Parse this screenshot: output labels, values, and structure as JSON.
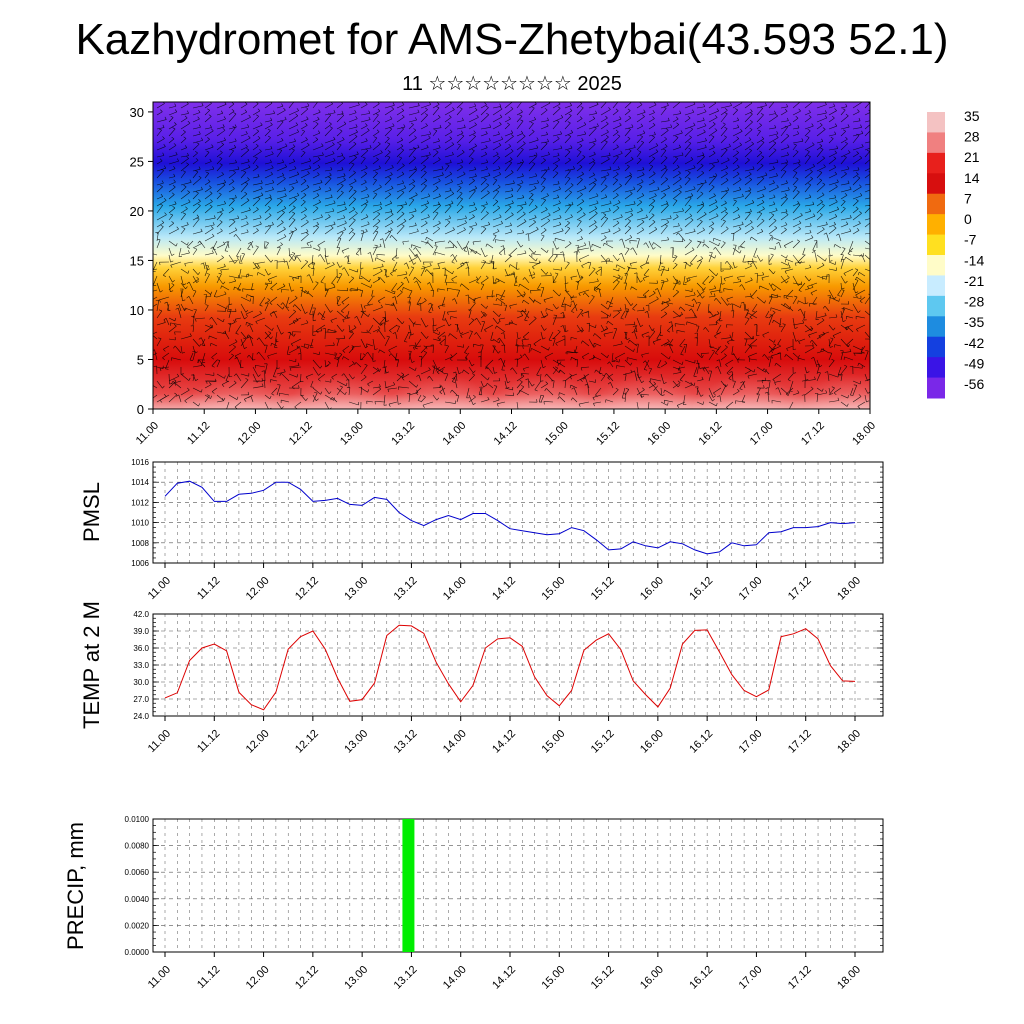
{
  "title": "Kazhydromet for AMS-Zhetybai(43.593 52.1)",
  "subtitle": "11 ☆☆☆☆☆☆☆☆ 2025",
  "time_ticks": [
    "11.00",
    "11.12",
    "12.00",
    "12.12",
    "13.00",
    "13.12",
    "14.00",
    "14.12",
    "15.00",
    "15.12",
    "16.00",
    "16.12",
    "17.00",
    "17.12",
    "18.00"
  ],
  "colorbar": {
    "labels": [
      "35",
      "28",
      "21",
      "14",
      "7",
      "0",
      "-7",
      "-14",
      "-21",
      "-28",
      "-35",
      "-42",
      "-49",
      "-56"
    ],
    "colors": [
      "#f4c2c2",
      "#f08080",
      "#e8201c",
      "#d70f0f",
      "#f06a10",
      "#ffb000",
      "#ffe020",
      "#fffcc8",
      "#c8ecff",
      "#5ec8f0",
      "#1e8ce0",
      "#1440e0",
      "#3a14e6",
      "#7a28e8"
    ]
  },
  "chart_data": [
    {
      "type": "heatmap",
      "name": "temperature-wind-profile",
      "x_ticks": [
        "11.00",
        "11.12",
        "12.00",
        "12.12",
        "13.00",
        "13.12",
        "14.00",
        "14.12",
        "15.00",
        "15.12",
        "16.00",
        "16.12",
        "17.00",
        "17.12",
        "18.00"
      ],
      "y_ticks": [
        "0",
        "5",
        "10",
        "15",
        "20",
        "25",
        "30"
      ],
      "ylim": [
        0,
        31
      ],
      "color_scale": [
        -56,
        35
      ],
      "overlay": "wind barbs"
    },
    {
      "type": "line",
      "ylabel": "PMSL",
      "color": "#0000cc",
      "ylim": [
        1006,
        1016
      ],
      "y_ticks": [
        "1016",
        "1014",
        "1012",
        "1010",
        "1008",
        "1006"
      ],
      "x_ticks": [
        "11.00",
        "11.12",
        "12.00",
        "12.12",
        "13.00",
        "13.12",
        "14.00",
        "14.12",
        "15.00",
        "15.12",
        "16.00",
        "16.12",
        "17.00",
        "17.12",
        "18.00"
      ],
      "values": [
        1012.6,
        1013.9,
        1014.1,
        1013.5,
        1012.1,
        1012.1,
        1012.8,
        1012.9,
        1013.2,
        1014.0,
        1014.0,
        1013.3,
        1012.1,
        1012.2,
        1012.4,
        1011.8,
        1011.7,
        1012.5,
        1012.3,
        1011.0,
        1010.2,
        1009.7,
        1010.3,
        1010.7,
        1010.3,
        1010.9,
        1010.9,
        1010.2,
        1009.4,
        1009.2,
        1009.0,
        1008.8,
        1008.9,
        1009.5,
        1009.2,
        1008.3,
        1007.3,
        1007.4,
        1008.1,
        1007.7,
        1007.5,
        1008.1,
        1007.9,
        1007.3,
        1006.9,
        1007.1,
        1008.0,
        1007.7,
        1007.8,
        1009.0,
        1009.1,
        1009.5,
        1009.5,
        1009.6,
        1010.0,
        1009.9,
        1010.0
      ]
    },
    {
      "type": "line",
      "ylabel": "TEMP at 2 M",
      "color": "#dd0000",
      "ylim": [
        24,
        42
      ],
      "y_ticks": [
        "42.0",
        "39.0",
        "36.0",
        "33.0",
        "30.0",
        "27.0",
        "24.0"
      ],
      "x_ticks": [
        "11.00",
        "11.12",
        "12.00",
        "12.12",
        "13.00",
        "13.12",
        "14.00",
        "14.12",
        "15.00",
        "15.12",
        "16.00",
        "16.12",
        "17.00",
        "17.12",
        "18.00"
      ],
      "values": [
        27.2,
        28.1,
        33.8,
        36.0,
        36.7,
        35.5,
        28.2,
        26.0,
        25.1,
        28.2,
        35.8,
        38.0,
        39.0,
        35.8,
        30.7,
        26.6,
        26.9,
        29.8,
        38.2,
        40.0,
        39.9,
        38.6,
        33.5,
        29.7,
        26.5,
        29.4,
        36.0,
        37.6,
        37.8,
        36.3,
        30.9,
        27.6,
        25.8,
        28.5,
        35.6,
        37.4,
        38.5,
        35.7,
        30.2,
        27.8,
        25.6,
        28.9,
        36.7,
        39.1,
        39.2,
        35.3,
        31.3,
        28.5,
        27.4,
        28.6,
        38.0,
        38.5,
        39.4,
        37.6,
        32.9,
        30.2,
        30.1
      ]
    },
    {
      "type": "bar",
      "ylabel": "PRECIP, mm",
      "color": "#00ee00",
      "ylim": [
        0,
        0.01
      ],
      "y_ticks": [
        "0.0100",
        "0.0080",
        "0.0060",
        "0.0040",
        "0.0020",
        "0.0000"
      ],
      "x_ticks": [
        "11.00",
        "11.12",
        "12.00",
        "12.12",
        "13.00",
        "13.12",
        "14.00",
        "14.12",
        "15.00",
        "15.12",
        "16.00",
        "16.12",
        "17.00",
        "17.12",
        "18.00"
      ],
      "bars": [
        {
          "time": "13.12",
          "value": 0.01
        }
      ]
    }
  ]
}
